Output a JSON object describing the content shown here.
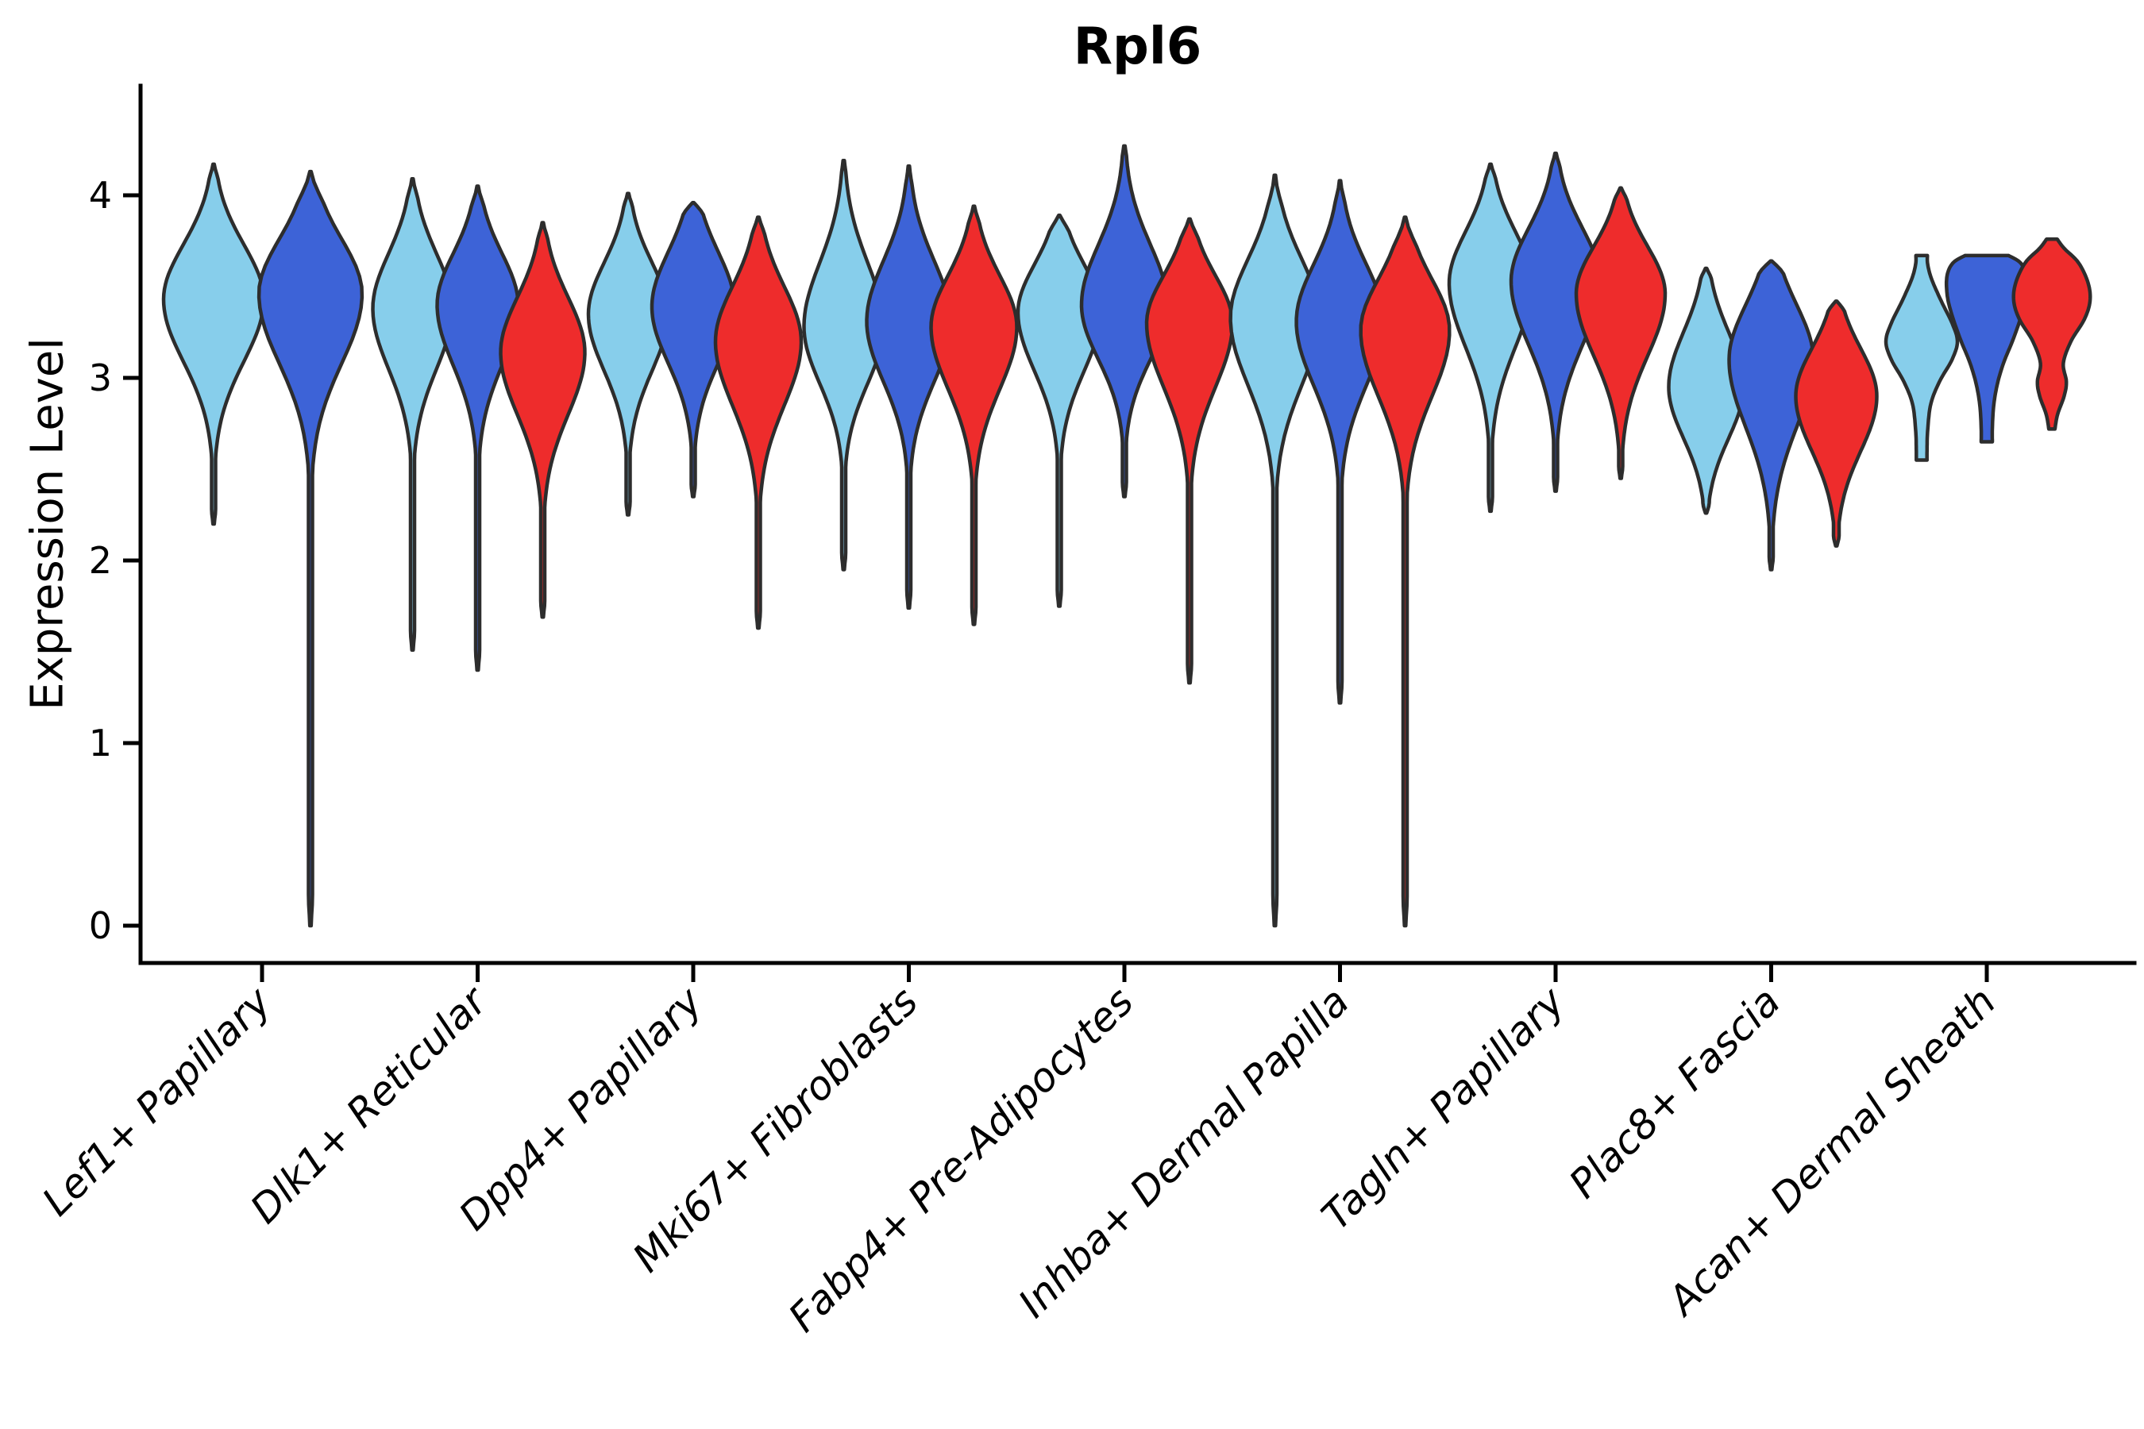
{
  "title": "Rpl6",
  "ylabel": "Expression Level",
  "colors": {
    "series": [
      "#87CEEB",
      "#3D63D7",
      "#EE2C2C"
    ],
    "outline": "#2d2d2d",
    "axis": "#000000"
  },
  "chart_data": {
    "type": "violin",
    "title": "Rpl6",
    "ylabel": "Expression Level",
    "ylim": [
      -0.25,
      4.6
    ],
    "yticks": [
      0,
      1,
      2,
      3,
      4
    ],
    "grid": false,
    "legend": "none",
    "series_colors": [
      "#87CEEB",
      "#3D63D7",
      "#EE2C2C"
    ],
    "categories": [
      {
        "label": "Lef1+ Papillary",
        "violins": [
          {
            "color": 0,
            "max": 4.17,
            "peak": 3.43,
            "min": 2.2,
            "sigma_top": 0.3,
            "sigma_bottom": 0.34,
            "halfwidth": 63,
            "tail_w": 2.5,
            "blunt": false
          },
          {
            "color": 1,
            "max": 4.13,
            "peak": 3.46,
            "min": 0.0,
            "sigma_top": 0.3,
            "sigma_bottom": 0.38,
            "halfwidth": 65,
            "tail_w": 2.5,
            "blunt": false
          }
        ]
      },
      {
        "label": "Dlk1+ Reticular",
        "violins": [
          {
            "color": 0,
            "max": 4.09,
            "peak": 3.38,
            "min": 1.51,
            "sigma_top": 0.3,
            "sigma_bottom": 0.33,
            "halfwidth": 50,
            "tail_w": 2.5,
            "blunt": false
          },
          {
            "color": 1,
            "max": 4.05,
            "peak": 3.4,
            "min": 1.4,
            "sigma_top": 0.28,
            "sigma_bottom": 0.33,
            "halfwidth": 51,
            "tail_w": 2.5,
            "blunt": false
          },
          {
            "color": 2,
            "max": 3.85,
            "peak": 3.14,
            "min": 1.69,
            "sigma_top": 0.3,
            "sigma_bottom": 0.34,
            "halfwidth": 53,
            "tail_w": 2.5,
            "blunt": false
          }
        ]
      },
      {
        "label": "Dpp4+ Papillary",
        "violins": [
          {
            "color": 0,
            "max": 4.01,
            "peak": 3.35,
            "min": 2.25,
            "sigma_top": 0.28,
            "sigma_bottom": 0.31,
            "halfwidth": 50,
            "tail_w": 2.5,
            "blunt": false
          },
          {
            "color": 1,
            "max": 3.96,
            "peak": 3.39,
            "min": 2.35,
            "sigma_top": 0.3,
            "sigma_bottom": 0.31,
            "halfwidth": 52,
            "tail_w": 2.5,
            "blunt": false
          },
          {
            "color": 2,
            "max": 3.88,
            "peak": 3.2,
            "min": 1.63,
            "sigma_top": 0.3,
            "sigma_bottom": 0.35,
            "halfwidth": 54,
            "tail_w": 2.5,
            "blunt": false
          }
        ]
      },
      {
        "label": "Mki67+ Fibroblasts",
        "violins": [
          {
            "color": 0,
            "max": 4.19,
            "peak": 3.28,
            "min": 1.95,
            "sigma_top": 0.35,
            "sigma_bottom": 0.31,
            "halfwidth": 50,
            "tail_w": 2.5,
            "blunt": false
          },
          {
            "color": 1,
            "max": 4.16,
            "peak": 3.31,
            "min": 1.74,
            "sigma_top": 0.33,
            "sigma_bottom": 0.33,
            "halfwidth": 53,
            "tail_w": 2.5,
            "blunt": false
          },
          {
            "color": 2,
            "max": 3.94,
            "peak": 3.28,
            "min": 1.65,
            "sigma_top": 0.28,
            "sigma_bottom": 0.34,
            "halfwidth": 54,
            "tail_w": 2.5,
            "blunt": false
          }
        ]
      },
      {
        "label": "Fabp4+ Pre-Adipocytes",
        "violins": [
          {
            "color": 0,
            "max": 3.89,
            "peak": 3.36,
            "min": 1.75,
            "sigma_top": 0.26,
            "sigma_bottom": 0.32,
            "halfwidth": 52,
            "tail_w": 2.5,
            "blunt": false
          },
          {
            "color": 1,
            "max": 4.27,
            "peak": 3.4,
            "min": 2.35,
            "sigma_top": 0.33,
            "sigma_bottom": 0.3,
            "halfwidth": 54,
            "tail_w": 2.5,
            "blunt": false
          },
          {
            "color": 2,
            "max": 3.87,
            "peak": 3.3,
            "min": 1.33,
            "sigma_top": 0.26,
            "sigma_bottom": 0.35,
            "halfwidth": 54,
            "tail_w": 2.5,
            "blunt": false
          }
        ]
      },
      {
        "label": "Inhba+ Dermal Papilla",
        "violins": [
          {
            "color": 0,
            "max": 4.11,
            "peak": 3.33,
            "min": 0.0,
            "sigma_top": 0.32,
            "sigma_bottom": 0.37,
            "halfwidth": 56,
            "tail_w": 2.5,
            "blunt": false
          },
          {
            "color": 1,
            "max": 4.08,
            "peak": 3.31,
            "min": 1.22,
            "sigma_top": 0.31,
            "sigma_bottom": 0.35,
            "halfwidth": 55,
            "tail_w": 2.5,
            "blunt": false
          },
          {
            "color": 2,
            "max": 3.88,
            "peak": 3.26,
            "min": 0.0,
            "sigma_top": 0.28,
            "sigma_bottom": 0.36,
            "halfwidth": 56,
            "tail_w": 2.5,
            "blunt": false
          }
        ]
      },
      {
        "label": "Tagln+ Papillary",
        "violins": [
          {
            "color": 0,
            "max": 4.17,
            "peak": 3.52,
            "min": 2.27,
            "sigma_top": 0.28,
            "sigma_bottom": 0.35,
            "halfwidth": 52,
            "tail_w": 2.5,
            "blunt": false
          },
          {
            "color": 1,
            "max": 4.23,
            "peak": 3.53,
            "min": 2.38,
            "sigma_top": 0.29,
            "sigma_bottom": 0.35,
            "halfwidth": 56,
            "tail_w": 2.5,
            "blunt": false
          },
          {
            "color": 2,
            "max": 4.04,
            "peak": 3.46,
            "min": 2.45,
            "sigma_top": 0.26,
            "sigma_bottom": 0.34,
            "halfwidth": 56,
            "tail_w": 2.5,
            "blunt": false
          }
        ]
      },
      {
        "label": "Plac8+ Fascia",
        "violins": [
          {
            "color": 0,
            "max": 3.6,
            "peak": 2.95,
            "min": 2.26,
            "sigma_top": 0.3,
            "sigma_bottom": 0.28,
            "halfwidth": 47,
            "tail_w": 4.0,
            "blunt": false
          },
          {
            "color": 1,
            "max": 3.64,
            "peak": 3.1,
            "min": 1.95,
            "sigma_top": 0.3,
            "sigma_bottom": 0.37,
            "halfwidth": 53,
            "tail_w": 2.5,
            "blunt": false
          },
          {
            "color": 2,
            "max": 3.42,
            "peak": 2.9,
            "min": 2.08,
            "sigma_top": 0.26,
            "sigma_bottom": 0.3,
            "halfwidth": 51,
            "tail_w": 3.5,
            "blunt": false
          }
        ]
      },
      {
        "label": "Acan+ Dermal Sheath",
        "violins": [
          {
            "color": 0,
            "halfwidth": 45,
            "blunt": true,
            "max": 3.67,
            "peak": 3.2,
            "min": 2.55,
            "profile": [
              [
                3.67,
                0.16
              ],
              [
                3.62,
                0.17
              ],
              [
                3.54,
                0.28
              ],
              [
                3.42,
                0.55
              ],
              [
                3.3,
                0.85
              ],
              [
                3.2,
                1.0
              ],
              [
                3.1,
                0.85
              ],
              [
                2.98,
                0.5
              ],
              [
                2.86,
                0.26
              ],
              [
                2.72,
                0.17
              ],
              [
                2.6,
                0.15
              ],
              [
                2.55,
                0.15
              ]
            ]
          },
          {
            "color": 1,
            "halfwidth": 50,
            "blunt": true,
            "max": 3.67,
            "peak": 3.5,
            "min": 2.65,
            "profile": [
              [
                3.67,
                0.55
              ],
              [
                3.63,
                0.85
              ],
              [
                3.56,
                1.0
              ],
              [
                3.46,
                1.0
              ],
              [
                3.36,
                0.9
              ],
              [
                3.22,
                0.68
              ],
              [
                3.08,
                0.42
              ],
              [
                2.96,
                0.26
              ],
              [
                2.84,
                0.17
              ],
              [
                2.72,
                0.14
              ],
              [
                2.65,
                0.14
              ]
            ]
          },
          {
            "color": 2,
            "halfwidth": 48,
            "blunt": true,
            "max": 3.76,
            "peak": 3.42,
            "min": 2.72,
            "profile": [
              [
                3.76,
                0.14
              ],
              [
                3.71,
                0.32
              ],
              [
                3.63,
                0.7
              ],
              [
                3.52,
                0.95
              ],
              [
                3.42,
                1.0
              ],
              [
                3.32,
                0.85
              ],
              [
                3.2,
                0.5
              ],
              [
                3.08,
                0.3
              ],
              [
                2.98,
                0.38
              ],
              [
                2.9,
                0.32
              ],
              [
                2.8,
                0.15
              ],
              [
                2.72,
                0.08
              ]
            ]
          }
        ]
      }
    ]
  }
}
